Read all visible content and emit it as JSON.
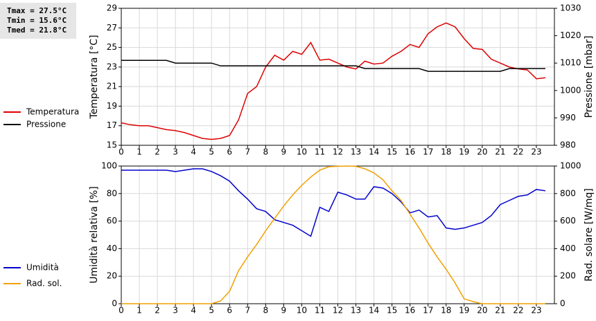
{
  "stats": [
    "Tmax = 27.5°C",
    "Tmin = 15.6°C",
    "Tmed = 21.8°C"
  ],
  "chart_data": [
    {
      "type": "line",
      "ylabel": "Temperatura [°C]",
      "y2label": "Pressione [mbar]",
      "x": [
        0,
        0.5,
        1,
        1.5,
        2,
        2.5,
        3,
        3.5,
        4,
        4.5,
        5,
        5.5,
        6,
        6.5,
        7,
        7.5,
        8,
        8.5,
        9,
        9.5,
        10,
        10.5,
        11,
        11.5,
        12,
        12.5,
        13,
        13.5,
        14,
        14.5,
        15,
        15.5,
        16,
        16.5,
        17,
        17.5,
        18,
        18.5,
        19,
        19.5,
        20,
        20.5,
        21,
        21.5,
        22,
        22.5,
        23,
        23.5
      ],
      "xlim": [
        0,
        24
      ],
      "xticks": [
        0,
        1,
        2,
        3,
        4,
        5,
        6,
        7,
        8,
        9,
        10,
        11,
        12,
        13,
        14,
        15,
        16,
        17,
        18,
        19,
        20,
        21,
        22,
        23
      ],
      "ylim": [
        15,
        29
      ],
      "yticks": [
        15,
        17,
        19,
        21,
        23,
        25,
        27,
        29
      ],
      "y2lim": [
        980,
        1030
      ],
      "y2ticks": [
        980,
        990,
        1000,
        1010,
        1020,
        1030
      ],
      "grid": true,
      "series": [
        {
          "name": "Temperatura",
          "color": "#dd0000",
          "values": [
            17.3,
            17.1,
            17.0,
            17.0,
            16.8,
            16.6,
            16.5,
            16.3,
            16.0,
            15.7,
            15.6,
            15.7,
            16.0,
            17.6,
            20.3,
            21.0,
            23.0,
            24.2,
            23.7,
            24.6,
            24.3,
            25.5,
            23.7,
            23.8,
            23.4,
            23.0,
            22.8,
            23.6,
            23.3,
            23.4,
            24.1,
            24.6,
            25.3,
            25.0,
            26.4,
            27.1,
            27.5,
            27.1,
            25.9,
            24.9,
            24.8,
            23.8,
            23.4,
            23.0,
            22.8,
            22.7,
            21.8,
            21.9
          ]
        },
        {
          "name": "Pressione",
          "color": "#000000",
          "axis": "y2",
          "values": [
            1011,
            1011,
            1011,
            1011,
            1011,
            1011,
            1010,
            1010,
            1010,
            1010,
            1010,
            1009,
            1009,
            1009,
            1009,
            1009,
            1009,
            1009,
            1009,
            1009,
            1009,
            1009,
            1009,
            1009,
            1009,
            1009,
            1009,
            1008,
            1008,
            1008,
            1008,
            1008,
            1008,
            1008,
            1007,
            1007,
            1007,
            1007,
            1007,
            1007,
            1007,
            1007,
            1007,
            1008,
            1008,
            1008,
            1008,
            1008
          ]
        }
      ]
    },
    {
      "type": "line",
      "ylabel": "Umidità relativa [%]",
      "y2label": "Rad. solare [W/mq]",
      "x": [
        0,
        0.5,
        1,
        1.5,
        2,
        2.5,
        3,
        3.5,
        4,
        4.5,
        5,
        5.5,
        6,
        6.5,
        7,
        7.5,
        8,
        8.5,
        9,
        9.5,
        10,
        10.5,
        11,
        11.5,
        12,
        12.5,
        13,
        13.5,
        14,
        14.5,
        15,
        15.5,
        16,
        16.5,
        17,
        17.5,
        18,
        18.5,
        19,
        19.5,
        20,
        20.5,
        21,
        21.5,
        22,
        22.5,
        23,
        23.5
      ],
      "xlim": [
        0,
        24
      ],
      "xticks": [
        0,
        1,
        2,
        3,
        4,
        5,
        6,
        7,
        8,
        9,
        10,
        11,
        12,
        13,
        14,
        15,
        16,
        17,
        18,
        19,
        20,
        21,
        22,
        23
      ],
      "ylim": [
        0,
        100
      ],
      "yticks": [
        0,
        20,
        40,
        60,
        80,
        100
      ],
      "y2lim": [
        0,
        1000
      ],
      "y2ticks": [
        0,
        200,
        400,
        600,
        800,
        1000
      ],
      "grid": true,
      "series": [
        {
          "name": "Umidità",
          "color": "#0000cc",
          "values": [
            97,
            97,
            97,
            97,
            97,
            97,
            96,
            97,
            98,
            98,
            96,
            93,
            89,
            82,
            76,
            69,
            67,
            61,
            59,
            57,
            53,
            49,
            70,
            67,
            81,
            79,
            76,
            76,
            85,
            84,
            80,
            74,
            66,
            68,
            63,
            64,
            55,
            54,
            55,
            57,
            59,
            64,
            72,
            75,
            78,
            79,
            83,
            82
          ]
        },
        {
          "name": "Rad. sol.",
          "color": "#f0a000",
          "axis": "y2",
          "values": [
            0,
            0,
            0,
            0,
            0,
            0,
            0,
            0,
            0,
            0,
            0,
            20,
            90,
            240,
            340,
            430,
            530,
            620,
            710,
            790,
            860,
            920,
            970,
            995,
            998,
            1000,
            998,
            980,
            950,
            900,
            820,
            750,
            650,
            550,
            440,
            340,
            250,
            150,
            35,
            15,
            0,
            0,
            0,
            0,
            0,
            0,
            0,
            0
          ]
        }
      ]
    }
  ]
}
